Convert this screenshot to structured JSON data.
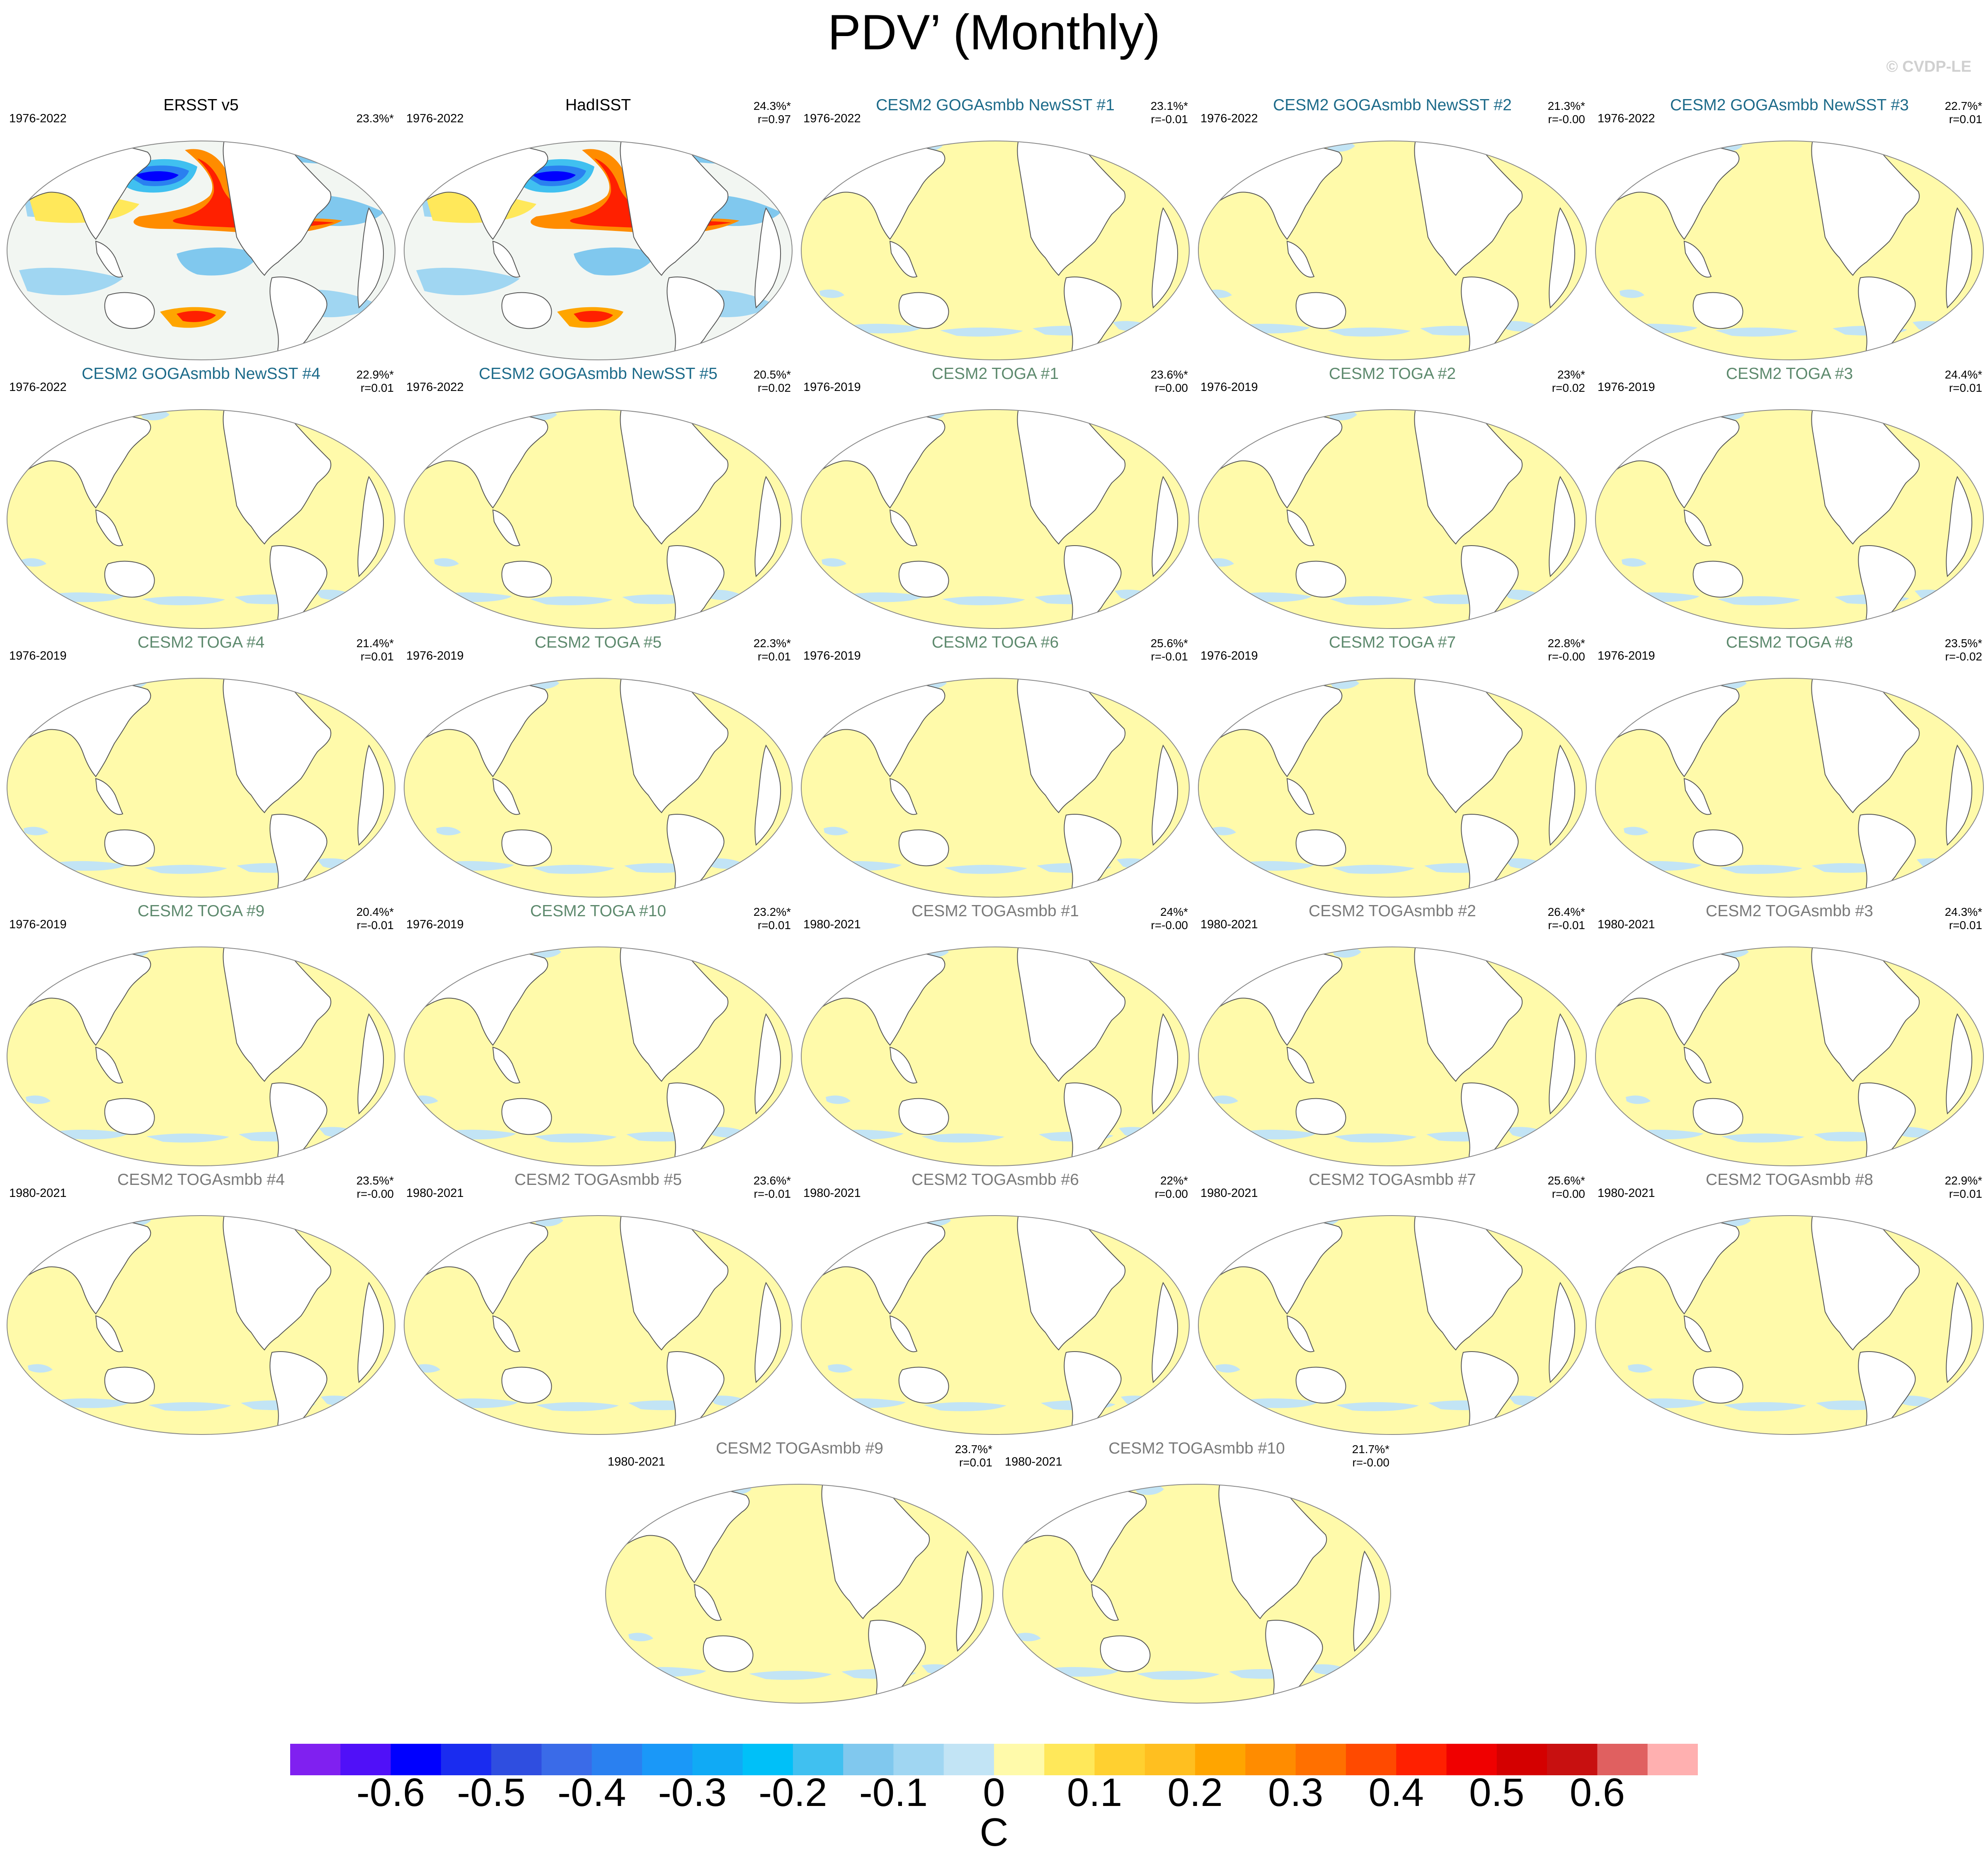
{
  "title": "PDV’ (Monthly)",
  "credit": "© CVDP-LE",
  "colors": {
    "ocean_fill": "#fffaaa",
    "cool_patch": "#c2e4f5",
    "land": "#ffffff",
    "coast": "#555555",
    "obs_title": "#000000",
    "goga_title": "#1d6b8a",
    "toga_title": "#5e8a6e",
    "togasmbb_title": "#7a7a7a"
  },
  "panels": [
    {
      "title": "ERSST v5",
      "group": "obs",
      "years": "1976-2022",
      "pct": "23.3%*",
      "r": ""
    },
    {
      "title": "HadISST",
      "group": "obs",
      "years": "1976-2022",
      "pct": "24.3%*",
      "r": "r=0.97"
    },
    {
      "title": "CESM2 GOGAsmbb NewSST #1",
      "group": "goga",
      "years": "1976-2022",
      "pct": "23.1%*",
      "r": "r=-0.01"
    },
    {
      "title": "CESM2 GOGAsmbb NewSST #2",
      "group": "goga",
      "years": "1976-2022",
      "pct": "21.3%*",
      "r": "r=-0.00"
    },
    {
      "title": "CESM2 GOGAsmbb NewSST #3",
      "group": "goga",
      "years": "1976-2022",
      "pct": "22.7%*",
      "r": "r=0.01"
    },
    {
      "title": "CESM2 GOGAsmbb NewSST #4",
      "group": "goga",
      "years": "1976-2022",
      "pct": "22.9%*",
      "r": "r=0.01"
    },
    {
      "title": "CESM2 GOGAsmbb NewSST #5",
      "group": "goga",
      "years": "1976-2022",
      "pct": "20.5%*",
      "r": "r=0.02"
    },
    {
      "title": "CESM2 TOGA #1",
      "group": "toga",
      "years": "1976-2019",
      "pct": "23.6%*",
      "r": "r=0.00"
    },
    {
      "title": "CESM2 TOGA #2",
      "group": "toga",
      "years": "1976-2019",
      "pct": "23%*",
      "r": "r=0.02"
    },
    {
      "title": "CESM2 TOGA #3",
      "group": "toga",
      "years": "1976-2019",
      "pct": "24.4%*",
      "r": "r=0.01"
    },
    {
      "title": "CESM2 TOGA #4",
      "group": "toga",
      "years": "1976-2019",
      "pct": "21.4%*",
      "r": "r=0.01"
    },
    {
      "title": "CESM2 TOGA #5",
      "group": "toga",
      "years": "1976-2019",
      "pct": "22.3%*",
      "r": "r=0.01"
    },
    {
      "title": "CESM2 TOGA #6",
      "group": "toga",
      "years": "1976-2019",
      "pct": "25.6%*",
      "r": "r=-0.01"
    },
    {
      "title": "CESM2 TOGA #7",
      "group": "toga",
      "years": "1976-2019",
      "pct": "22.8%*",
      "r": "r=-0.00"
    },
    {
      "title": "CESM2 TOGA #8",
      "group": "toga",
      "years": "1976-2019",
      "pct": "23.5%*",
      "r": "r=-0.02"
    },
    {
      "title": "CESM2 TOGA #9",
      "group": "toga",
      "years": "1976-2019",
      "pct": "20.4%*",
      "r": "r=-0.01"
    },
    {
      "title": "CESM2 TOGA #10",
      "group": "toga",
      "years": "1976-2019",
      "pct": "23.2%*",
      "r": "r=0.01"
    },
    {
      "title": "CESM2 TOGAsmbb #1",
      "group": "togasmbb",
      "years": "1980-2021",
      "pct": "24%*",
      "r": "r=-0.00"
    },
    {
      "title": "CESM2 TOGAsmbb #2",
      "group": "togasmbb",
      "years": "1980-2021",
      "pct": "26.4%*",
      "r": "r=-0.01"
    },
    {
      "title": "CESM2 TOGAsmbb #3",
      "group": "togasmbb",
      "years": "1980-2021",
      "pct": "24.3%*",
      "r": "r=0.01"
    },
    {
      "title": "CESM2 TOGAsmbb #4",
      "group": "togasmbb",
      "years": "1980-2021",
      "pct": "23.5%*",
      "r": "r=-0.00"
    },
    {
      "title": "CESM2 TOGAsmbb #5",
      "group": "togasmbb",
      "years": "1980-2021",
      "pct": "23.6%*",
      "r": "r=-0.01"
    },
    {
      "title": "CESM2 TOGAsmbb #6",
      "group": "togasmbb",
      "years": "1980-2021",
      "pct": "22%*",
      "r": "r=0.00"
    },
    {
      "title": "CESM2 TOGAsmbb #7",
      "group": "togasmbb",
      "years": "1980-2021",
      "pct": "25.6%*",
      "r": "r=0.00"
    },
    {
      "title": "CESM2 TOGAsmbb #8",
      "group": "togasmbb",
      "years": "1980-2021",
      "pct": "22.9%*",
      "r": "r=0.01"
    },
    {
      "title": "CESM2 TOGAsmbb #9",
      "group": "togasmbb",
      "years": "1980-2021",
      "pct": "23.7%*",
      "r": "r=0.01"
    },
    {
      "title": "CESM2 TOGAsmbb #10",
      "group": "togasmbb",
      "years": "1980-2021",
      "pct": "21.7%*",
      "r": "r=-0.00"
    }
  ],
  "colorbar": {
    "colors": [
      "#8020f0",
      "#5010f8",
      "#0000ff",
      "#1a2cf0",
      "#2f4ee0",
      "#3a6be8",
      "#2a80f0",
      "#1a98f8",
      "#10aaf5",
      "#00c0f8",
      "#40c0f0",
      "#80c8ee",
      "#a0d6f2",
      "#c2e4f5",
      "#fffaaa",
      "#ffe85a",
      "#ffd030",
      "#ffbf20",
      "#ffa500",
      "#ff8c00",
      "#ff7000",
      "#ff4a00",
      "#ff2000",
      "#f00000",
      "#d40000",
      "#c81010",
      "#e06060",
      "#ffb0b0"
    ],
    "tick_labels": [
      "-0.6",
      "-0.5",
      "-0.4",
      "-0.3",
      "-0.2",
      "-0.1",
      "0",
      "0.1",
      "0.2",
      "0.3",
      "0.4",
      "0.5",
      "0.6"
    ],
    "tick_values": [
      -0.6,
      -0.5,
      -0.4,
      -0.3,
      -0.2,
      -0.1,
      0,
      0.1,
      0.2,
      0.3,
      0.4,
      0.5,
      0.6
    ],
    "range": [
      -0.7,
      0.7
    ],
    "unit": "C"
  }
}
